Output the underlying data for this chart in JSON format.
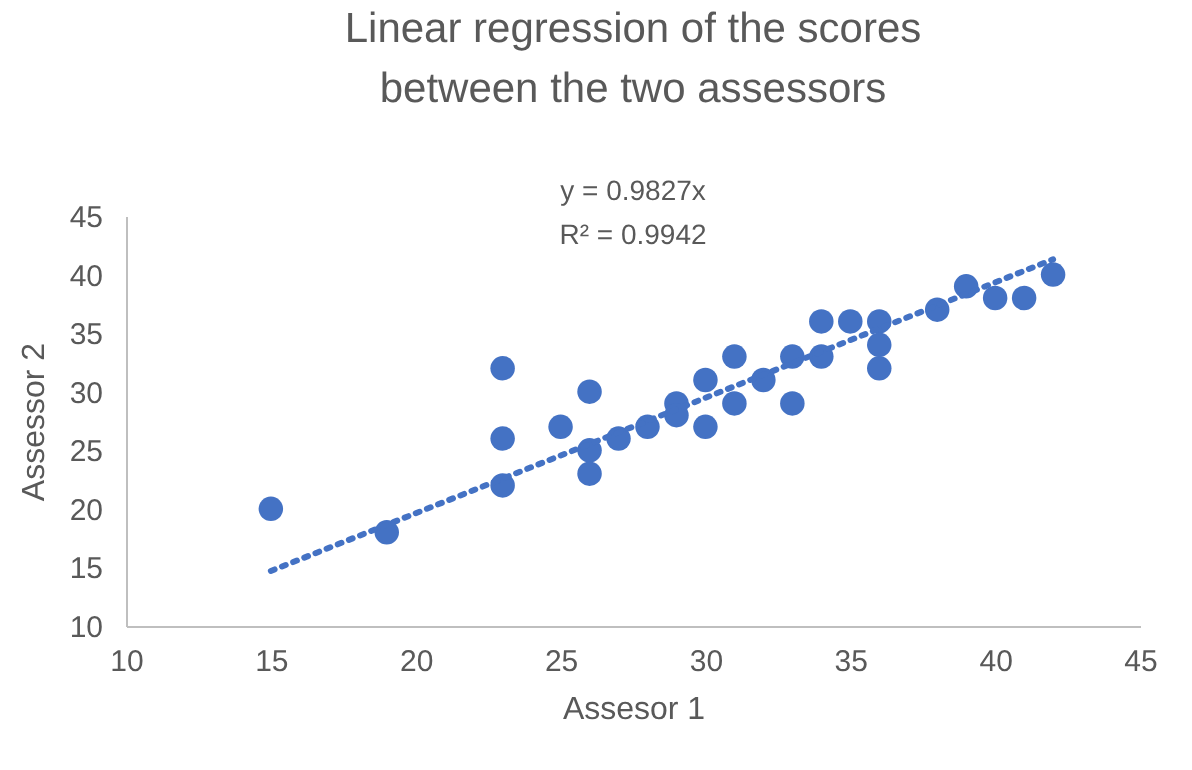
{
  "chart_data": {
    "type": "scatter",
    "title": "Linear regression of the scores between the two assessors",
    "xlabel": "Assesor 1",
    "ylabel": "Assessor 2",
    "annotations": [
      "y = 0.9827x",
      "R² = 0.9942"
    ],
    "xlim": [
      10,
      45
    ],
    "xticks": [
      10,
      15,
      20,
      25,
      30,
      35,
      40,
      45
    ],
    "ylim": [
      10,
      45
    ],
    "yticks": [
      10,
      15,
      20,
      25,
      30,
      35,
      40,
      45
    ],
    "grid": false,
    "marker": "circle",
    "series": [
      {
        "color": "#4472c4",
        "x": [
          15,
          19,
          23,
          23,
          23,
          25,
          26,
          26,
          26,
          27,
          28,
          29,
          29,
          30,
          30,
          31,
          31,
          32,
          33,
          33,
          34,
          34,
          35,
          36,
          36,
          36,
          38,
          39,
          40,
          41,
          42
        ],
        "values": [
          20,
          18,
          32,
          26,
          22,
          27,
          30,
          25,
          23,
          26,
          27,
          29,
          28,
          31,
          27,
          33,
          29,
          31,
          33,
          29,
          36,
          33,
          36,
          36,
          34,
          32,
          37,
          39,
          38,
          38,
          40
        ]
      },
      {
        "type": "line",
        "color": "#4472c4",
        "line_style": "dotted",
        "marker": "none",
        "x": [
          15,
          42
        ],
        "values": [
          14.7,
          41.3
        ]
      }
    ]
  }
}
